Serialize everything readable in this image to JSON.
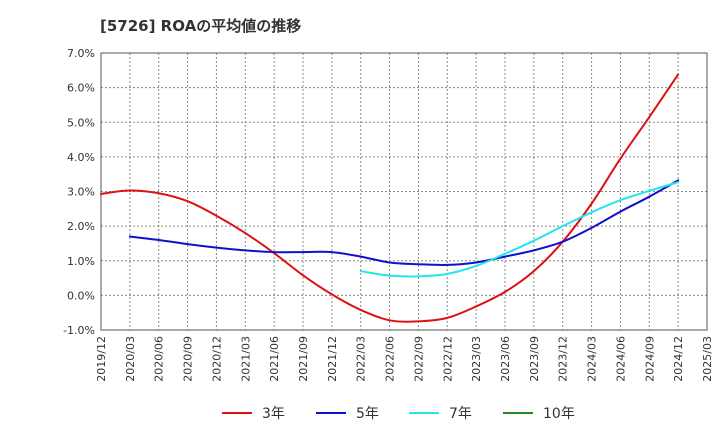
{
  "chart_data": {
    "type": "line",
    "title": "[5726]  ROAの平均値の推移",
    "xlabel": "",
    "ylabel": "",
    "ylim": [
      -1.0,
      7.0
    ],
    "yticks": [
      "-1.0%",
      "0.0%",
      "1.0%",
      "2.0%",
      "3.0%",
      "4.0%",
      "5.0%",
      "6.0%",
      "7.0%"
    ],
    "xticks": [
      "2019/12",
      "2020/03",
      "2020/06",
      "2020/09",
      "2020/12",
      "2021/03",
      "2021/06",
      "2021/09",
      "2021/12",
      "2022/03",
      "2022/06",
      "2022/09",
      "2022/12",
      "2023/03",
      "2023/06",
      "2023/09",
      "2023/12",
      "2024/03",
      "2024/06",
      "2024/09",
      "2024/12",
      "2025/03"
    ],
    "grid": true,
    "legend_position": "bottom",
    "series": [
      {
        "name": "3年",
        "color": "#dd1111",
        "points": [
          [
            "2019/12",
            2.93
          ],
          [
            "2020/03",
            3.03
          ],
          [
            "2020/06",
            2.95
          ],
          [
            "2020/09",
            2.72
          ],
          [
            "2020/12",
            2.3
          ],
          [
            "2021/03",
            1.8
          ],
          [
            "2021/06",
            1.22
          ],
          [
            "2021/09",
            0.58
          ],
          [
            "2021/12",
            0.03
          ],
          [
            "2022/03",
            -0.42
          ],
          [
            "2022/06",
            -0.72
          ],
          [
            "2022/09",
            -0.75
          ],
          [
            "2022/12",
            -0.65
          ],
          [
            "2023/03",
            -0.32
          ],
          [
            "2023/06",
            0.1
          ],
          [
            "2023/09",
            0.7
          ],
          [
            "2023/12",
            1.55
          ],
          [
            "2024/03",
            2.65
          ],
          [
            "2024/06",
            3.95
          ],
          [
            "2024/09",
            5.15
          ],
          [
            "2024/12",
            6.38
          ]
        ]
      },
      {
        "name": "5年",
        "color": "#1111cc",
        "points": [
          [
            "2020/03",
            1.7
          ],
          [
            "2020/06",
            1.6
          ],
          [
            "2020/09",
            1.48
          ],
          [
            "2020/12",
            1.38
          ],
          [
            "2021/03",
            1.3
          ],
          [
            "2021/06",
            1.25
          ],
          [
            "2021/09",
            1.25
          ],
          [
            "2021/12",
            1.25
          ],
          [
            "2022/03",
            1.12
          ],
          [
            "2022/06",
            0.95
          ],
          [
            "2022/09",
            0.9
          ],
          [
            "2022/12",
            0.88
          ],
          [
            "2023/03",
            0.95
          ],
          [
            "2023/06",
            1.12
          ],
          [
            "2023/09",
            1.3
          ],
          [
            "2023/12",
            1.55
          ],
          [
            "2024/03",
            1.95
          ],
          [
            "2024/06",
            2.42
          ],
          [
            "2024/09",
            2.85
          ],
          [
            "2024/12",
            3.32
          ]
        ]
      },
      {
        "name": "7年",
        "color": "#22e5ee",
        "points": [
          [
            "2022/03",
            0.7
          ],
          [
            "2022/06",
            0.57
          ],
          [
            "2022/09",
            0.55
          ],
          [
            "2022/12",
            0.62
          ],
          [
            "2023/03",
            0.85
          ],
          [
            "2023/06",
            1.2
          ],
          [
            "2023/09",
            1.58
          ],
          [
            "2023/12",
            2.0
          ],
          [
            "2024/03",
            2.4
          ],
          [
            "2024/06",
            2.75
          ],
          [
            "2024/09",
            3.02
          ],
          [
            "2024/12",
            3.27
          ]
        ]
      },
      {
        "name": "10年",
        "color": "#228822",
        "points": []
      }
    ]
  }
}
